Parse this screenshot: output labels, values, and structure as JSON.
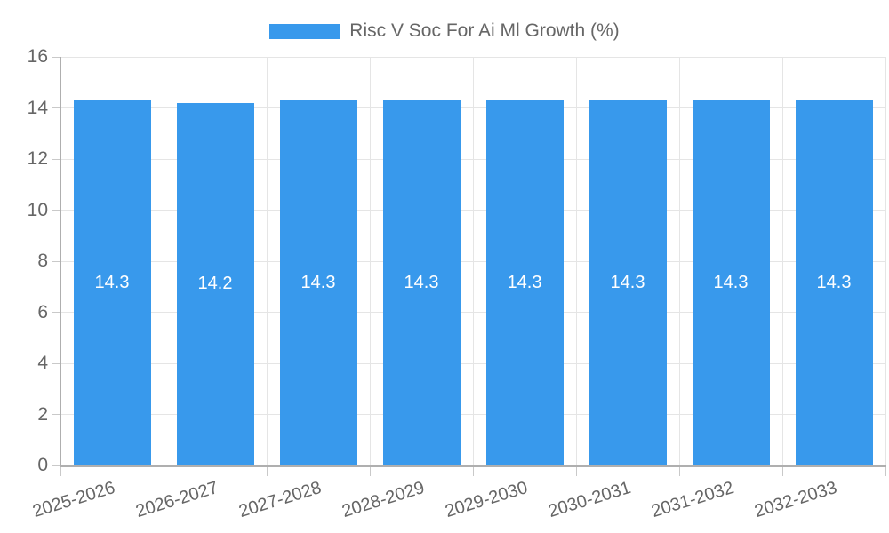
{
  "legend": {
    "label": "Risc V Soc For Ai Ml Growth (%)"
  },
  "colors": {
    "bar": "#3899EC",
    "grid": "#E5E5E5",
    "axis": "#AFAFAF",
    "tick": "#C9C9C9",
    "tick_text": "#666666",
    "bar_label_text": "#FFFFFF",
    "background": "#FFFFFF"
  },
  "chart_data": {
    "type": "bar",
    "title": "Risc V Soc For Ai Ml Growth (%)",
    "categories": [
      "2025-2026",
      "2026-2027",
      "2027-2028",
      "2028-2029",
      "2029-2030",
      "2030-2031",
      "2031-2032",
      "2032-2033"
    ],
    "values": [
      14.3,
      14.2,
      14.3,
      14.3,
      14.3,
      14.3,
      14.3,
      14.3
    ],
    "value_labels": [
      "14.3",
      "14.2",
      "14.3",
      "14.3",
      "14.3",
      "14.3",
      "14.3",
      "14.3"
    ],
    "ytick_labels": [
      "0",
      "2",
      "4",
      "6",
      "8",
      "10",
      "12",
      "14",
      "16"
    ],
    "ylim": [
      0,
      16
    ],
    "ytick_step": 2,
    "xlabel": "",
    "ylabel": "",
    "grid": true,
    "legend_position": "top",
    "xtick_rotation_deg": -17
  }
}
